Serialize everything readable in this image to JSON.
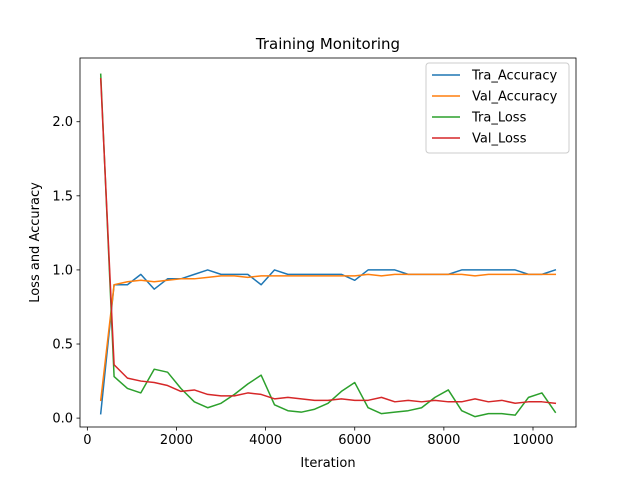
{
  "chart_data": {
    "type": "line",
    "title": "Training Monitoring",
    "xlabel": "Iteration",
    "ylabel": "Loss and Accuracy",
    "xlim": [
      -165,
      10965
    ],
    "ylim": [
      -0.06,
      2.43
    ],
    "xticks": [
      0,
      2000,
      4000,
      6000,
      8000,
      10000
    ],
    "yticks": [
      0.0,
      0.5,
      1.0,
      1.5,
      2.0
    ],
    "xtick_labels": [
      "0",
      "2000",
      "4000",
      "6000",
      "8000",
      "10000"
    ],
    "ytick_labels": [
      "0.0",
      "0.5",
      "1.0",
      "1.5",
      "2.0"
    ],
    "grid": false,
    "legend_position": "top-right",
    "x": [
      300,
      600,
      900,
      1200,
      1500,
      1800,
      2100,
      2400,
      2700,
      3000,
      3300,
      3600,
      3900,
      4200,
      4500,
      4800,
      5100,
      5400,
      5700,
      6000,
      6300,
      6600,
      6900,
      7200,
      7500,
      7800,
      8100,
      8400,
      8700,
      9000,
      9300,
      9600,
      9900,
      10200,
      10500
    ],
    "series": [
      {
        "name": "Tra_Accuracy",
        "color": "#1f77b4",
        "values": [
          0.03,
          0.9,
          0.9,
          0.97,
          0.87,
          0.94,
          0.94,
          0.97,
          1.0,
          0.97,
          0.97,
          0.97,
          0.9,
          1.0,
          0.97,
          0.97,
          0.97,
          0.97,
          0.97,
          0.93,
          1.0,
          1.0,
          1.0,
          0.97,
          0.97,
          0.97,
          0.97,
          1.0,
          1.0,
          1.0,
          1.0,
          1.0,
          0.97,
          0.97,
          1.0
        ]
      },
      {
        "name": "Val_Accuracy",
        "color": "#ff7f0e",
        "values": [
          0.12,
          0.9,
          0.92,
          0.93,
          0.92,
          0.93,
          0.94,
          0.94,
          0.95,
          0.96,
          0.96,
          0.95,
          0.96,
          0.96,
          0.96,
          0.96,
          0.96,
          0.96,
          0.96,
          0.96,
          0.97,
          0.96,
          0.97,
          0.97,
          0.97,
          0.97,
          0.97,
          0.97,
          0.96,
          0.97,
          0.97,
          0.97,
          0.97,
          0.97,
          0.97
        ]
      },
      {
        "name": "Tra_Loss",
        "color": "#2ca02c",
        "values": [
          2.32,
          0.28,
          0.2,
          0.17,
          0.33,
          0.31,
          0.2,
          0.11,
          0.07,
          0.1,
          0.16,
          0.23,
          0.29,
          0.09,
          0.05,
          0.04,
          0.06,
          0.1,
          0.18,
          0.24,
          0.07,
          0.03,
          0.04,
          0.05,
          0.07,
          0.14,
          0.19,
          0.05,
          0.01,
          0.03,
          0.03,
          0.02,
          0.14,
          0.17,
          0.04
        ]
      },
      {
        "name": "Val_Loss",
        "color": "#d62728",
        "values": [
          2.29,
          0.36,
          0.27,
          0.25,
          0.24,
          0.22,
          0.18,
          0.19,
          0.16,
          0.15,
          0.15,
          0.17,
          0.16,
          0.13,
          0.14,
          0.13,
          0.12,
          0.12,
          0.13,
          0.12,
          0.12,
          0.14,
          0.11,
          0.12,
          0.11,
          0.12,
          0.11,
          0.11,
          0.13,
          0.11,
          0.12,
          0.1,
          0.11,
          0.11,
          0.1
        ]
      }
    ]
  }
}
